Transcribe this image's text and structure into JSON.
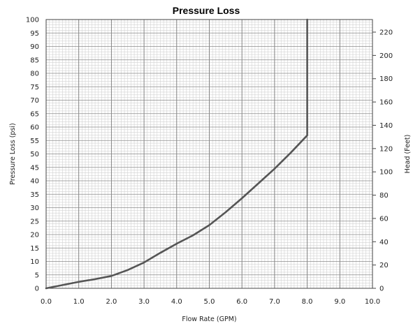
{
  "chart_data": {
    "type": "line",
    "title": "Pressure Loss",
    "xlabel": "Flow Rate (GPM)",
    "ylabel": "Pressure Loss (psi)",
    "y2label": "Head (Feet)",
    "xlim": [
      0,
      10
    ],
    "ylim": [
      0,
      100
    ],
    "y2lim": [
      0,
      230.8
    ],
    "x_ticks": [
      "0.0",
      "1.0",
      "2.0",
      "3.0",
      "4.0",
      "5.0",
      "6.0",
      "7.0",
      "8.0",
      "9.0",
      "10.0"
    ],
    "y_ticks": [
      "0",
      "5",
      "10",
      "15",
      "20",
      "25",
      "30",
      "35",
      "40",
      "45",
      "50",
      "55",
      "60",
      "65",
      "70",
      "75",
      "80",
      "85",
      "90",
      "95",
      "100"
    ],
    "y2_ticks": [
      "0",
      "20",
      "40",
      "60",
      "80",
      "100",
      "120",
      "140",
      "160",
      "180",
      "200",
      "220"
    ],
    "grid": true,
    "line_color": "#555555",
    "series": [
      {
        "x": [
          0.0,
          0.5,
          1.0,
          1.5,
          2.0,
          2.5,
          3.0,
          3.5,
          4.0,
          4.5,
          5.0,
          5.5,
          6.0,
          6.5,
          7.0,
          7.5,
          8.0,
          8.0
        ],
        "y": [
          0.0,
          1.2,
          2.4,
          3.4,
          4.6,
          6.8,
          9.6,
          13.2,
          16.6,
          19.7,
          23.5,
          28.3,
          33.5,
          39.0,
          44.5,
          50.5,
          56.9,
          100.0
        ]
      }
    ]
  }
}
